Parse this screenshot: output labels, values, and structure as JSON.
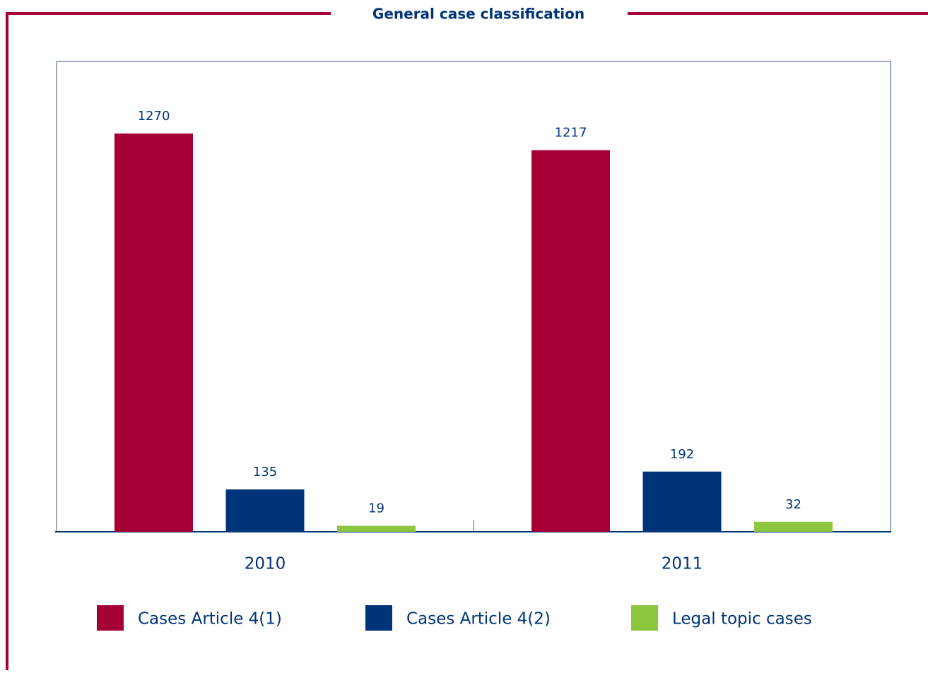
{
  "chart_data": {
    "type": "bar",
    "title": "General case classification",
    "categories": [
      "2010",
      "2011"
    ],
    "series": [
      {
        "name": "Cases Article 4(1)",
        "color": "#a50034",
        "values": [
          1270,
          1217
        ]
      },
      {
        "name": "Cases Article 4(2)",
        "color": "#003478",
        "values": [
          135,
          192
        ]
      },
      {
        "name": "Legal topic cases",
        "color": "#8dc63f",
        "values": [
          19,
          32
        ]
      }
    ],
    "ylim": [
      0,
      1500
    ]
  }
}
